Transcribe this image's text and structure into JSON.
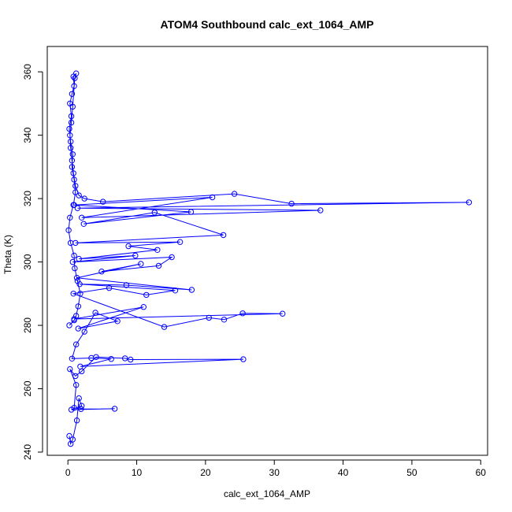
{
  "chart_data": {
    "type": "scatter",
    "title": "ATOM4 Southbound calc_ext_1064_AMP",
    "xlabel": "calc_ext_1064_AMP",
    "ylabel": "Theta (K)",
    "xlim": [
      -3.0,
      61.0
    ],
    "ylim": [
      239.0,
      368.0
    ],
    "x_ticks": [
      0,
      10,
      20,
      30,
      40,
      50,
      60
    ],
    "y_ticks": [
      240,
      260,
      280,
      300,
      320,
      340,
      360
    ],
    "grid": false,
    "legend": "none",
    "marker": "open-circle",
    "line": "connected-in-order",
    "series_color": "#0000ff",
    "series": [
      {
        "x": [
          0.2,
          0.9,
          1.2,
          1.5,
          1.8,
          1.4,
          1.0,
          0.9,
          0.4,
          0.1,
          0.3,
          0.8,
          1.1,
          0.9,
          0.6,
          0.7,
          0.4,
          0.2,
          0.5,
          0.3,
          0.6,
          0.9,
          0.8,
          1.2,
          1.0,
          0.7,
          0.5,
          0.3,
          0.4,
          0.6,
          0.8,
          1.1,
          1.6,
          2.4,
          5.1,
          24.2,
          32.5,
          58.3,
          1.4,
          36.7,
          2.0,
          21.0,
          0.9,
          17.9,
          2.3,
          12.6,
          22.6,
          1.1,
          16.3,
          8.8,
          13.0,
          1.6,
          9.8,
          0.7,
          15.1,
          13.2,
          4.9,
          10.6,
          1.3,
          18.0,
          8.5,
          1.7,
          15.6,
          11.4,
          6.0,
          0.8,
          14.0,
          20.5,
          22.7,
          25.4,
          31.2,
          0.9,
          11.0,
          1.5,
          7.2,
          4.0,
          2.4,
          1.2,
          0.6,
          3.4,
          6.3,
          1.8,
          25.5,
          9.1,
          8.3,
          4.1,
          2.0,
          1.1,
          0.3,
          1.2,
          0.9,
          1.9,
          6.8,
          0.5,
          2.0,
          1.6,
          1.3,
          0.7,
          0.4,
          0.2
        ],
        "y": [
          280.0,
          281.6,
          283.0,
          286.0,
          290.0,
          294.0,
          298.0,
          302.0,
          306.0,
          310.0,
          314.0,
          318.0,
          322.0,
          326.0,
          330.0,
          334.0,
          338.0,
          342.0,
          346.0,
          350.0,
          353.0,
          355.5,
          358.5,
          359.5,
          358.0,
          349.0,
          344.0,
          340.0,
          336.0,
          332.0,
          328.0,
          324.0,
          321.0,
          320.0,
          319.0,
          321.5,
          318.4,
          318.8,
          317.0,
          316.3,
          314.0,
          320.4,
          318.0,
          315.8,
          312.0,
          315.6,
          308.5,
          306.0,
          306.3,
          305.0,
          303.8,
          301.0,
          302.0,
          300.0,
          301.5,
          298.8,
          297.0,
          299.4,
          295.0,
          291.2,
          292.7,
          293.0,
          291.0,
          289.6,
          291.8,
          290.0,
          279.5,
          282.4,
          281.8,
          283.8,
          283.7,
          282.0,
          285.8,
          279.0,
          281.3,
          284.0,
          278.0,
          274.0,
          269.5,
          269.7,
          269.4,
          267.0,
          269.3,
          269.2,
          269.6,
          270.0,
          265.5,
          264.0,
          266.2,
          261.2,
          254.0,
          253.6,
          253.7,
          253.4,
          254.6,
          257.0,
          250.0,
          244.0,
          242.6,
          245.1
        ]
      }
    ]
  }
}
